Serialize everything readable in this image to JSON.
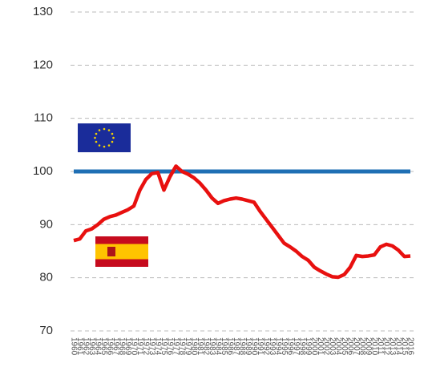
{
  "chart_data": {
    "type": "line",
    "categories": [
      "1960",
      "1961",
      "1962",
      "1963",
      "1964",
      "1965",
      "1966",
      "1967",
      "1968",
      "1969",
      "1970",
      "1971",
      "1972",
      "1973",
      "1974",
      "1975",
      "1976",
      "1977",
      "1978",
      "1979",
      "1980",
      "1981",
      "1982",
      "1983",
      "1984",
      "1985",
      "1986",
      "1987",
      "1988",
      "1989",
      "1990",
      "1991",
      "1992",
      "1993",
      "1994",
      "1995",
      "1996",
      "1997",
      "1998",
      "1999",
      "2000",
      "2001",
      "2002",
      "2003",
      "2004",
      "2005",
      "2006",
      "2007",
      "2008",
      "2009",
      "2010",
      "2011",
      "2012",
      "2013",
      "2014",
      "2015",
      "2016"
    ],
    "series": [
      {
        "color": "#1f6fb4",
        "values": [
          100,
          100,
          100,
          100,
          100,
          100,
          100,
          100,
          100,
          100,
          100,
          100,
          100,
          100,
          100,
          100,
          100,
          100,
          100,
          100,
          100,
          100,
          100,
          100,
          100,
          100,
          100,
          100,
          100,
          100,
          100,
          100,
          100,
          100,
          100,
          100,
          100,
          100,
          100,
          100,
          100,
          100,
          100,
          100,
          100,
          100,
          100,
          100,
          100,
          100,
          100,
          100,
          100,
          100,
          100,
          100,
          100
        ]
      },
      {
        "color": "#e8100f",
        "values": [
          87,
          87.3,
          88.8,
          89.2,
          90,
          91,
          91.5,
          91.8,
          92.3,
          92.8,
          93.5,
          96.5,
          98.5,
          99.6,
          99.8,
          96.5,
          99,
          101,
          100,
          99.5,
          98.8,
          97.8,
          96.5,
          95,
          94,
          94.5,
          94.8,
          95,
          94.8,
          94.5,
          94.2,
          92.5,
          91,
          89.5,
          88,
          86.5,
          85.8,
          85,
          84,
          83.3,
          82,
          81.3,
          80.7,
          80.2,
          80.1,
          80.6,
          82,
          84.2,
          84,
          84.1,
          84.3,
          85.8,
          86.3,
          86,
          85.2,
          84,
          84.1
        ]
      }
    ],
    "ylim": [
      70,
      130
    ],
    "yticks": [
      70,
      80,
      90,
      100,
      110,
      120,
      130
    ],
    "grid": true
  }
}
